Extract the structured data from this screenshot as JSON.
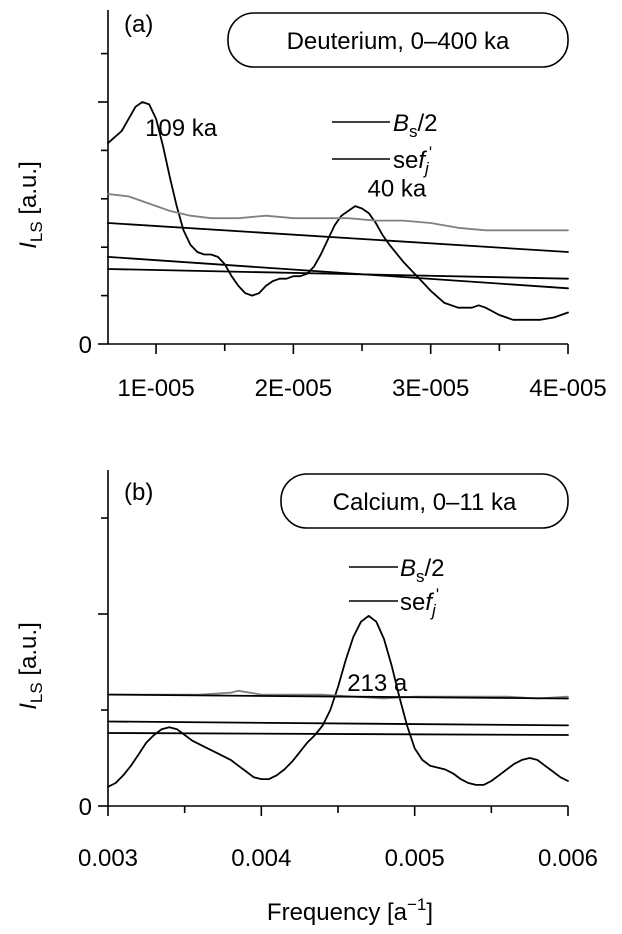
{
  "colors": {
    "signal": "#000000",
    "se_curve": "#808080",
    "background": "#ffffff"
  },
  "xlabel": {
    "base": "Frequency [a",
    "sup": "−1",
    "close": "]"
  },
  "chart_data": [
    {
      "type": "line",
      "panel_label": "(a)",
      "title": "Deuterium, 0–400 ka",
      "ylabel": {
        "italic": "I",
        "sub": "LS",
        "units": "[a.u.]"
      },
      "xlim": [
        6.5e-06,
        4e-05
      ],
      "ylim": [
        0,
        1
      ],
      "x_ticks": [
        1e-05,
        2e-05,
        3e-05,
        4e-05
      ],
      "x_tick_labels": [
        "1E-005",
        "2E-005",
        "3E-005",
        "4E-005"
      ],
      "y_tick_labels": [
        "0"
      ],
      "legend": [
        {
          "italic": "B",
          "sub": "s",
          "tail": "/2"
        },
        {
          "pre": "se",
          "italic": "f",
          "sub": "j",
          "sup": "'"
        }
      ],
      "annotations": [
        {
          "text": "109 ka",
          "x": 9.2e-06,
          "y": 0.86
        },
        {
          "text": "40 ka",
          "x": 2.54e-05,
          "y": 0.61
        }
      ],
      "series": [
        {
          "role": "signal",
          "x": [
            6.5e-06,
            7.5e-06,
            8.5e-06,
            9e-06,
            9.5e-06,
            1e-05,
            1.05e-05,
            1.1e-05,
            1.15e-05,
            1.2e-05,
            1.25e-05,
            1.3e-05,
            1.35e-05,
            1.4e-05,
            1.45e-05,
            1.5e-05,
            1.55e-05,
            1.6e-05,
            1.65e-05,
            1.7e-05,
            1.75e-05,
            1.8e-05,
            1.85e-05,
            1.9e-05,
            1.95e-05,
            2e-05,
            2.05e-05,
            2.1e-05,
            2.15e-05,
            2.2e-05,
            2.25e-05,
            2.3e-05,
            2.35e-05,
            2.4e-05,
            2.45e-05,
            2.5e-05,
            2.55e-05,
            2.6e-05,
            2.65e-05,
            2.7e-05,
            2.8e-05,
            2.9e-05,
            3e-05,
            3.1e-05,
            3.2e-05,
            3.3e-05,
            3.35e-05,
            3.4e-05,
            3.5e-05,
            3.6e-05,
            3.7e-05,
            3.8e-05,
            3.9e-05,
            4e-05
          ],
          "y": [
            0.83,
            0.88,
            0.98,
            1.0,
            0.99,
            0.93,
            0.82,
            0.69,
            0.57,
            0.47,
            0.41,
            0.38,
            0.37,
            0.37,
            0.36,
            0.33,
            0.28,
            0.24,
            0.21,
            0.2,
            0.21,
            0.24,
            0.26,
            0.27,
            0.27,
            0.28,
            0.28,
            0.29,
            0.32,
            0.37,
            0.43,
            0.49,
            0.53,
            0.55,
            0.57,
            0.56,
            0.54,
            0.5,
            0.45,
            0.41,
            0.34,
            0.28,
            0.22,
            0.17,
            0.15,
            0.15,
            0.16,
            0.15,
            0.12,
            0.1,
            0.1,
            0.1,
            0.11,
            0.13
          ]
        },
        {
          "role": "se",
          "x": [
            6.5e-06,
            8e-06,
            9.5e-06,
            1.1e-05,
            1.25e-05,
            1.4e-05,
            1.6e-05,
            1.8e-05,
            2e-05,
            2.2e-05,
            2.4e-05,
            2.6e-05,
            2.8e-05,
            3e-05,
            3.2e-05,
            3.4e-05,
            3.6e-05,
            3.8e-05,
            4e-05
          ],
          "y": [
            0.62,
            0.61,
            0.58,
            0.55,
            0.53,
            0.52,
            0.52,
            0.53,
            0.52,
            0.52,
            0.52,
            0.51,
            0.51,
            0.5,
            0.48,
            0.47,
            0.47,
            0.47,
            0.47
          ]
        },
        {
          "role": "bs_upper",
          "x": [
            6.5e-06,
            4e-05
          ],
          "y": [
            0.5,
            0.38
          ]
        },
        {
          "role": "bs_mid",
          "x": [
            6.5e-06,
            4e-05
          ],
          "y": [
            0.36,
            0.23
          ]
        },
        {
          "role": "bs_lower",
          "x": [
            6.5e-06,
            4e-05
          ],
          "y": [
            0.31,
            0.27
          ]
        }
      ]
    },
    {
      "type": "line",
      "panel_label": "(b)",
      "title": "Calcium, 0–11 ka",
      "ylabel": {
        "italic": "I",
        "sub": "LS",
        "units": "[a.u.]"
      },
      "xlim": [
        0.003,
        0.006
      ],
      "ylim": [
        0,
        1
      ],
      "x_ticks": [
        0.003,
        0.004,
        0.005,
        0.006
      ],
      "x_tick_labels": [
        "0.003",
        "0.004",
        "0.005",
        "0.006"
      ],
      "y_tick_labels": [
        "0"
      ],
      "legend": [
        {
          "italic": "B",
          "sub": "s",
          "tail": "/2"
        },
        {
          "pre": "se",
          "italic": "f",
          "sub": "j",
          "sup": "'"
        }
      ],
      "annotations": [
        {
          "text": "213 a",
          "x": 0.00456,
          "y": 0.6
        }
      ],
      "series": [
        {
          "role": "signal",
          "x": [
            0.003,
            0.00305,
            0.0031,
            0.00315,
            0.0032,
            0.00325,
            0.0033,
            0.00335,
            0.0034,
            0.00345,
            0.0035,
            0.00355,
            0.0036,
            0.00365,
            0.0037,
            0.00375,
            0.0038,
            0.00385,
            0.0039,
            0.00395,
            0.004,
            0.00405,
            0.0041,
            0.00415,
            0.0042,
            0.00425,
            0.0043,
            0.00435,
            0.0044,
            0.00445,
            0.0045,
            0.00455,
            0.0046,
            0.00465,
            0.0047,
            0.00475,
            0.0048,
            0.00485,
            0.0049,
            0.00495,
            0.005,
            0.00505,
            0.0051,
            0.00515,
            0.0052,
            0.00525,
            0.0053,
            0.00535,
            0.0054,
            0.00545,
            0.0055,
            0.00555,
            0.0056,
            0.00565,
            0.0057,
            0.00575,
            0.0058,
            0.00585,
            0.0059,
            0.00595,
            0.006
          ],
          "y": [
            0.1,
            0.12,
            0.16,
            0.21,
            0.27,
            0.33,
            0.37,
            0.4,
            0.41,
            0.4,
            0.37,
            0.34,
            0.32,
            0.3,
            0.28,
            0.26,
            0.24,
            0.21,
            0.18,
            0.15,
            0.14,
            0.14,
            0.16,
            0.19,
            0.23,
            0.28,
            0.33,
            0.37,
            0.42,
            0.5,
            0.62,
            0.76,
            0.88,
            0.96,
            0.99,
            0.96,
            0.87,
            0.73,
            0.57,
            0.42,
            0.3,
            0.24,
            0.21,
            0.2,
            0.19,
            0.17,
            0.14,
            0.12,
            0.11,
            0.11,
            0.13,
            0.16,
            0.19,
            0.22,
            0.24,
            0.25,
            0.24,
            0.21,
            0.18,
            0.15,
            0.13
          ]
        },
        {
          "role": "se",
          "x": [
            0.003,
            0.0032,
            0.0034,
            0.0036,
            0.0038,
            0.00385,
            0.004,
            0.0042,
            0.0044,
            0.0046,
            0.0048,
            0.005,
            0.0052,
            0.0054,
            0.0056,
            0.0058,
            0.006
          ],
          "y": [
            0.58,
            0.58,
            0.58,
            0.58,
            0.59,
            0.6,
            0.58,
            0.58,
            0.58,
            0.57,
            0.56,
            0.57,
            0.57,
            0.57,
            0.57,
            0.56,
            0.57
          ]
        },
        {
          "role": "bs_upper",
          "x": [
            0.003,
            0.006
          ],
          "y": [
            0.58,
            0.56
          ]
        },
        {
          "role": "bs_mid",
          "x": [
            0.003,
            0.006
          ],
          "y": [
            0.44,
            0.42
          ]
        },
        {
          "role": "bs_lower",
          "x": [
            0.003,
            0.006
          ],
          "y": [
            0.38,
            0.37
          ]
        }
      ]
    }
  ]
}
